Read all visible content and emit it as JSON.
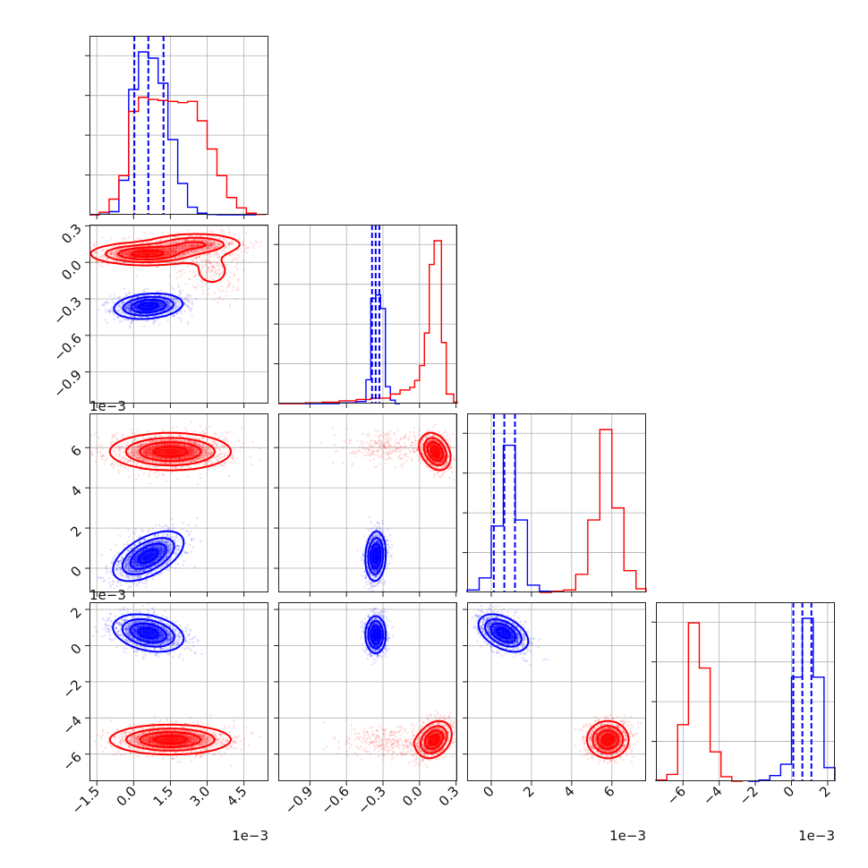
{
  "chart_data": {
    "type": "corner",
    "colors": {
      "series_a": "#0000ff",
      "series_b": "#ff0000"
    },
    "grid": true,
    "legend": "none",
    "dimensions": [
      {
        "range": [
          -0.0018,
          0.0055
        ],
        "ticks": [
          -0.0015,
          0.0,
          0.0015,
          0.003,
          0.0045
        ],
        "tick_labels": [
          "−1.5",
          "0.0",
          "1.5",
          "3.0",
          "4.5"
        ],
        "offset_text": "1e−3"
      },
      {
        "range": [
          -1.16,
          0.31
        ],
        "ticks": [
          -0.9,
          -0.6,
          -0.3,
          0.0,
          0.3
        ],
        "tick_labels": [
          "−0.9",
          "−0.6",
          "−0.3",
          "0.0",
          "0.3"
        ],
        "offset_text": ""
      },
      {
        "range": [
          -0.0012,
          0.0077
        ],
        "ticks": [
          0.0,
          0.002,
          0.004,
          0.006
        ],
        "tick_labels": [
          "0",
          "2",
          "4",
          "6"
        ],
        "offset_text": "1e−3"
      },
      {
        "range": [
          -0.0075,
          0.0024
        ],
        "ticks": [
          -0.006,
          -0.004,
          -0.002,
          0.0,
          0.002
        ],
        "tick_labels": [
          "−6",
          "−4",
          "−2",
          "0",
          "2"
        ],
        "offset_text": "1e−3"
      }
    ],
    "histograms": [
      {
        "dim": 0,
        "series": [
          {
            "name": "",
            "color": "#0000ff",
            "bins": [
              -0.0018,
              -0.0014,
              -0.001,
              -0.0006,
              -0.0002,
              0.0002,
              0.0006,
              0.001,
              0.0014,
              0.0018,
              0.0022,
              0.0026,
              0.003,
              0.0034,
              0.0038,
              0.0042,
              0.0046,
              0.005
            ],
            "counts": [
              0,
              2,
              10,
              110,
              400,
              520,
              500,
              420,
              240,
              100,
              24,
              5,
              1,
              0,
              0,
              0,
              0
            ]
          },
          {
            "name": "",
            "color": "#ff0000",
            "bins": [
              -0.0018,
              -0.0014,
              -0.001,
              -0.0006,
              -0.0002,
              0.0002,
              0.0006,
              0.001,
              0.0014,
              0.0018,
              0.0022,
              0.0026,
              0.003,
              0.0034,
              0.0038,
              0.0042,
              0.0046,
              0.005,
              0.0054
            ],
            "counts": [
              0,
              8,
              50,
              125,
              330,
              375,
              368,
              365,
              362,
              358,
              362,
              300,
              210,
              125,
              55,
              22,
              5,
              1
            ]
          }
        ],
        "quantiles": [
          3e-05,
          0.0006,
          0.00122
        ]
      },
      {
        "dim": 1,
        "series": [
          {
            "name": "",
            "color": "#0000ff",
            "bins": [
              -1.16,
              -0.94,
              -0.8,
              -0.66,
              -0.52,
              -0.44,
              -0.4,
              -0.36,
              -0.32,
              -0.28,
              -0.24,
              -0.2,
              -0.16
            ],
            "counts": [
              0,
              0,
              0,
              1,
              3,
              35,
              155,
              160,
              140,
              25,
              5,
              0
            ]
          },
          {
            "name": "",
            "color": "#ff0000",
            "bins": [
              -1.16,
              -0.94,
              -0.8,
              -0.66,
              -0.52,
              -0.4,
              -0.24,
              -0.16,
              -0.08,
              -0.04,
              0.0,
              0.04,
              0.08,
              0.12,
              0.18,
              0.22,
              0.28,
              0.31
            ],
            "counts": [
              0,
              1,
              2,
              4,
              6,
              8,
              14,
              20,
              24,
              34,
              56,
              104,
              205,
              240,
              90,
              14,
              2
            ]
          }
        ],
        "quantiles": [
          -0.39,
          -0.36,
          -0.33
        ]
      },
      {
        "dim": 2,
        "series": [
          {
            "name": "",
            "color": "#0000ff",
            "bins": [
              -0.0012,
              -0.0006,
              0.0,
              0.0006,
              0.0012,
              0.0018,
              0.0024,
              0.003
            ],
            "counts": [
              2,
              12,
              55,
              122,
              60,
              6,
              1
            ]
          },
          {
            "name": "",
            "color": "#ff0000",
            "bins": [
              0.0024,
              0.003,
              0.0036,
              0.0042,
              0.0048,
              0.0054,
              0.006,
              0.0066,
              0.0072,
              0.0078
            ],
            "counts": [
              0,
              1,
              2,
              15,
              60,
              135,
              70,
              18,
              3
            ]
          }
        ],
        "quantiles": [
          0.00013,
          0.00065,
          0.00118
        ]
      },
      {
        "dim": 3,
        "series": [
          {
            "name": "",
            "color": "#ff0000",
            "bins": [
              -0.0075,
              -0.0069,
              -0.0063,
              -0.0057,
              -0.0051,
              -0.0045,
              -0.0039,
              -0.0033,
              -0.0027
            ],
            "counts": [
              1,
              6,
              50,
              140,
              100,
              26,
              4,
              0
            ]
          },
          {
            "name": "",
            "color": "#0000ff",
            "bins": [
              -0.0024,
              -0.0018,
              -0.0012,
              -0.0006,
              0.0,
              0.0006,
              0.0012,
              0.0018,
              0.0024
            ],
            "counts": [
              0,
              1,
              5,
              15,
              92,
              144,
              92,
              12
            ]
          }
        ],
        "quantiles": [
          0.0001,
          0.0006,
          0.0011
        ]
      }
    ],
    "scatter_panels": [
      {
        "x_dim": 0,
        "y_dim": 1,
        "series": [
          {
            "name": "",
            "color": "#ff0000",
            "components": [
              {
                "mean": [
                  0.0005,
                  0.07
                ],
                "sd": [
                  0.0011,
                  0.045
                ],
                "rho": 0.0,
                "weight": 0.55
              },
              {
                "mean": [
                  0.0025,
                  0.15
                ],
                "sd": [
                  0.001,
                  0.045
                ],
                "rho": 0.0,
                "weight": 0.3
              },
              {
                "mean": [
                  0.0032,
                  -0.07
                ],
                "sd": [
                  0.0007,
                  0.12
                ],
                "rho": 0.0,
                "weight": 0.15
              }
            ]
          },
          {
            "name": "",
            "color": "#0000ff",
            "components": [
              {
                "mean": [
                  0.0006,
                  -0.36
                ],
                "sd": [
                  0.00068,
                  0.05
                ],
                "rho": 0.2,
                "weight": 1.0
              }
            ]
          }
        ]
      },
      {
        "x_dim": 0,
        "y_dim": 2,
        "series": [
          {
            "name": "",
            "color": "#ff0000",
            "components": [
              {
                "mean": [
                  0.0015,
                  0.0058
                ],
                "sd": [
                  0.0012,
                  0.00045
                ],
                "rho": 0.0,
                "weight": 1.0
              }
            ]
          },
          {
            "name": "",
            "color": "#0000ff",
            "components": [
              {
                "mean": [
                  0.0006,
                  0.0006
                ],
                "sd": [
                  0.0007,
                  0.0006
                ],
                "rho": 0.55,
                "weight": 1.0
              }
            ]
          }
        ]
      },
      {
        "x_dim": 1,
        "y_dim": 2,
        "series": [
          {
            "name": "",
            "color": "#ff0000",
            "components": [
              {
                "mean": [
                  0.13,
                  0.0058
                ],
                "sd": [
                  0.06,
                  0.00045
                ],
                "rho": -0.3,
                "weight": 0.8
              },
              {
                "mean": [
                  -0.25,
                  0.006
                ],
                "sd": [
                  0.18,
                  0.0004
                ],
                "rho": 0.0,
                "weight": 0.2
              }
            ]
          },
          {
            "name": "",
            "color": "#0000ff",
            "components": [
              {
                "mean": [
                  -0.36,
                  0.0006
                ],
                "sd": [
                  0.04,
                  0.0006
                ],
                "rho": 0.1,
                "weight": 1.0
              }
            ]
          }
        ]
      },
      {
        "x_dim": 0,
        "y_dim": 3,
        "series": [
          {
            "name": "",
            "color": "#ff0000",
            "components": [
              {
                "mean": [
                  0.0015,
                  -0.0052
                ],
                "sd": [
                  0.0012,
                  0.0004
                ],
                "rho": 0.0,
                "weight": 1.0
              }
            ]
          },
          {
            "name": "",
            "color": "#0000ff",
            "components": [
              {
                "mean": [
                  0.0006,
                  0.0007
                ],
                "sd": [
                  0.0007,
                  0.0005
                ],
                "rho": -0.3,
                "weight": 1.0
              }
            ]
          }
        ]
      },
      {
        "x_dim": 1,
        "y_dim": 3,
        "series": [
          {
            "name": "",
            "color": "#ff0000",
            "components": [
              {
                "mean": [
                  0.12,
                  -0.0052
                ],
                "sd": [
                  0.07,
                  0.0005
                ],
                "rho": 0.3,
                "weight": 0.8
              },
              {
                "mean": [
                  -0.25,
                  -0.0053
                ],
                "sd": [
                  0.2,
                  0.0004
                ],
                "rho": 0.0,
                "weight": 0.2
              }
            ]
          },
          {
            "name": "",
            "color": "#0000ff",
            "components": [
              {
                "mean": [
                  -0.36,
                  0.0006
                ],
                "sd": [
                  0.04,
                  0.0005
                ],
                "rho": 0.0,
                "weight": 1.0
              }
            ]
          }
        ]
      },
      {
        "x_dim": 2,
        "y_dim": 3,
        "series": [
          {
            "name": "",
            "color": "#ff0000",
            "components": [
              {
                "mean": [
                  0.0058,
                  -0.0052
                ],
                "sd": [
                  0.0005,
                  0.0005
                ],
                "rho": 0.0,
                "weight": 1.0
              }
            ]
          },
          {
            "name": "",
            "color": "#0000ff",
            "components": [
              {
                "mean": [
                  0.0006,
                  0.0007
                ],
                "sd": [
                  0.0006,
                  0.0005
                ],
                "rho": -0.45,
                "weight": 1.0
              }
            ]
          }
        ]
      }
    ]
  }
}
